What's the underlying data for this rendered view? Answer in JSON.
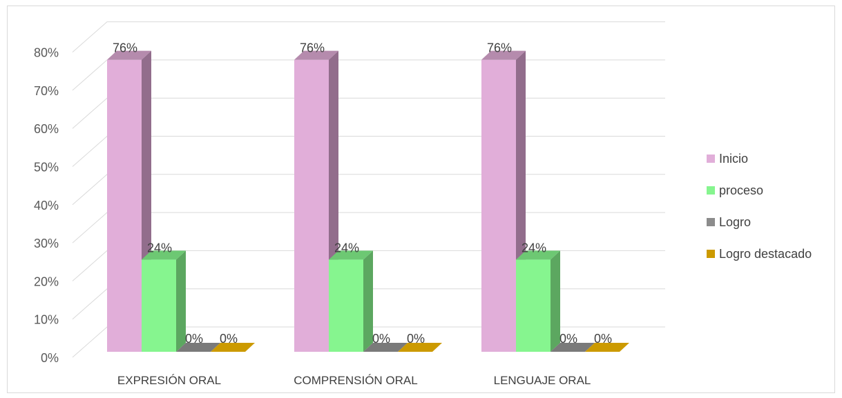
{
  "chart_data": {
    "type": "bar",
    "title": "",
    "xlabel": "",
    "ylabel": "",
    "ylim": [
      0,
      0.8
    ],
    "ytick_labels": [
      "0%",
      "10%",
      "20%",
      "30%",
      "40%",
      "50%",
      "60%",
      "70%",
      "80%"
    ],
    "categories": [
      "EXPRESIÓN ORAL",
      "COMPRENSIÓN ORAL",
      "LENGUAJE ORAL"
    ],
    "series": [
      {
        "name": "Inicio",
        "values": [
          0.76,
          0.76,
          0.76
        ],
        "labels": [
          "76%",
          "76%",
          "76%"
        ],
        "color": "#e1aed9",
        "side_color": "#926d8c",
        "top_color": "#b58bad"
      },
      {
        "name": "proceso",
        "values": [
          0.24,
          0.24,
          0.24
        ],
        "labels": [
          "24%",
          "24%",
          "24%"
        ],
        "color": "#86f58f",
        "side_color": "#5ca760",
        "top_color": "#6dc873"
      },
      {
        "name": "Logro",
        "values": [
          0,
          0,
          0
        ],
        "labels": [
          "0%",
          "0%",
          "0%"
        ],
        "color": "#8c8c8c",
        "side_color": "#666666",
        "top_color": "#7a7a7a"
      },
      {
        "name": "Logro destacado",
        "values": [
          0,
          0,
          0
        ],
        "labels": [
          "0%",
          "0%",
          "0%"
        ],
        "color": "#cc9a00",
        "side_color": "#a37a00",
        "top_color": "#cc9a00"
      }
    ],
    "legend_position": "right",
    "grid": true,
    "style": "3d-clustered-column"
  }
}
